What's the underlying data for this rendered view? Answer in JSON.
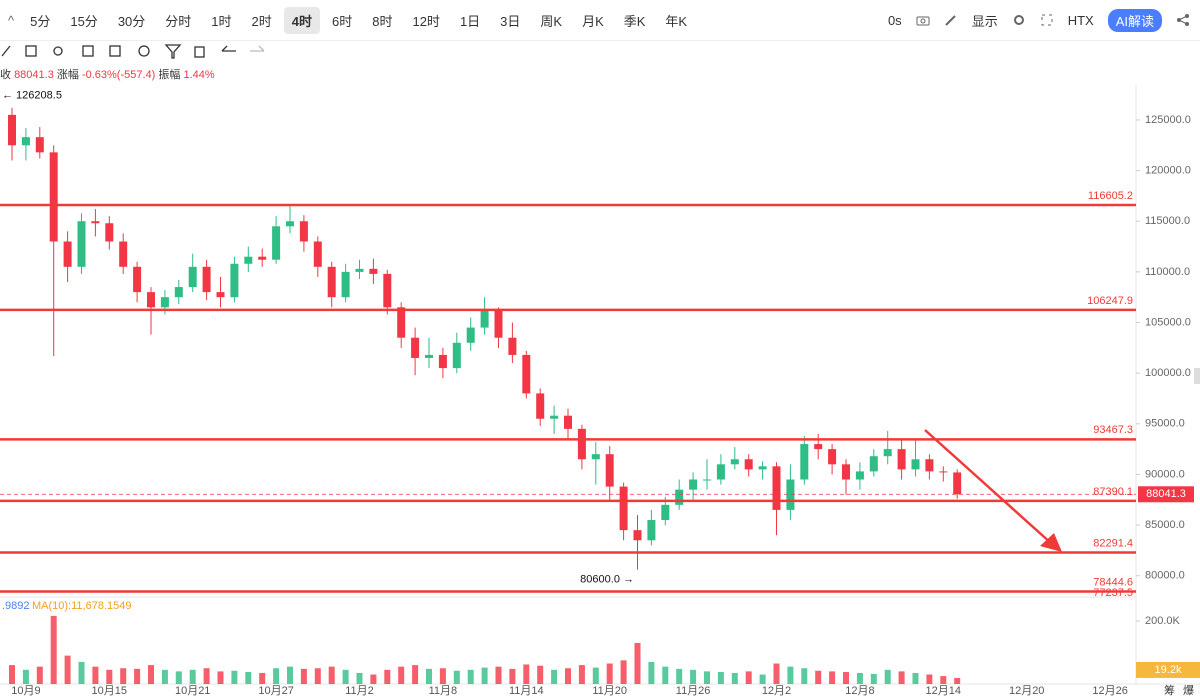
{
  "toolbar": {
    "intervals": [
      "5分",
      "15分",
      "30分",
      "分时",
      "1时",
      "2时",
      "4时",
      "6时",
      "8时",
      "12时",
      "1日",
      "3日",
      "周K",
      "月K",
      "季K",
      "年K"
    ],
    "selected": 6,
    "right": {
      "timer": "0s",
      "display": "显示",
      "exchange": "HTX",
      "ai": "AI解读"
    }
  },
  "info": {
    "close_label": "收",
    "close": "88041.3",
    "change_label": "涨幅",
    "change": "-0.63%(-557.4)",
    "amplitude_label": "振幅",
    "amplitude": "1.44%"
  },
  "volume_info": {
    "ma_prev": ".9892",
    "ma10": "MA(10):11,678.1549"
  },
  "side_tabs": [
    "筹",
    "爆"
  ],
  "chart_data": {
    "type": "candlestick",
    "categories": [
      null,
      "10月9",
      null,
      null,
      null,
      null,
      null,
      "10月15",
      null,
      null,
      null,
      null,
      null,
      "10月21",
      null,
      null,
      null,
      null,
      null,
      "10月27",
      null,
      null,
      null,
      null,
      null,
      "11月2",
      null,
      null,
      null,
      null,
      null,
      "11月8",
      null,
      null,
      null,
      null,
      null,
      "11月14",
      null,
      null,
      null,
      null,
      null,
      "11月20",
      null,
      null,
      null,
      null,
      null,
      "11月26",
      null,
      null,
      null,
      null,
      null,
      "12月2",
      null,
      null,
      null,
      null,
      null,
      "12月8",
      null,
      null,
      null,
      null,
      null,
      "12月14",
      null,
      null,
      null,
      null,
      null,
      "12月20",
      null,
      null,
      null,
      null,
      null,
      "12月26"
    ],
    "open": [
      125500,
      122500,
      123300,
      121800,
      113000,
      110500,
      115000,
      114800,
      113000,
      110500,
      108000,
      106500,
      107500,
      108500,
      110500,
      108000,
      107500,
      110800,
      111500,
      111200,
      114500,
      115000,
      113000,
      110500,
      107500,
      110000,
      110300,
      109800,
      106500,
      103500,
      101500,
      101800,
      100500,
      103000,
      104500,
      106200,
      103500,
      101800,
      98000,
      95500,
      95800,
      94500,
      91500,
      92000,
      88800,
      84500,
      83500,
      85500,
      87000,
      88500,
      89500,
      89500,
      91000,
      91500,
      90500,
      90800,
      86500,
      89500,
      93000,
      92500,
      91000,
      89500,
      90300,
      91800,
      92500,
      90500,
      91500,
      90300,
      90200,
      null,
      null,
      null,
      null,
      null,
      null,
      null,
      null,
      null,
      null,
      null
    ],
    "high": [
      126208.5,
      124200,
      124300,
      122500,
      114000,
      115800,
      116200,
      115500,
      113800,
      111000,
      108500,
      108200,
      109200,
      111800,
      111200,
      109500,
      111500,
      112500,
      112300,
      115500,
      116500,
      115600,
      113500,
      111000,
      110800,
      111200,
      111300,
      110200,
      107000,
      104500,
      103500,
      102500,
      104000,
      105500,
      107500,
      106500,
      105000,
      102200,
      98500,
      96800,
      96500,
      94900,
      93200,
      92800,
      89200,
      86000,
      86500,
      87800,
      89500,
      90200,
      91500,
      92000,
      92700,
      92000,
      91300,
      91200,
      91000,
      93800,
      94000,
      93000,
      91500,
      91200,
      92500,
      94300,
      93500,
      93500,
      92000,
      90800,
      90500,
      null,
      null,
      null,
      null,
      null,
      null,
      null,
      null,
      null,
      null,
      null
    ],
    "low": [
      121000,
      121000,
      121200,
      101700,
      109000,
      109800,
      113500,
      112200,
      109800,
      107000,
      103800,
      105800,
      106800,
      108000,
      107200,
      106500,
      107000,
      110000,
      110500,
      110800,
      113800,
      112000,
      109500,
      106500,
      107000,
      109300,
      108800,
      105800,
      102500,
      99800,
      100500,
      99500,
      100000,
      102200,
      103800,
      102500,
      101000,
      97500,
      94800,
      94000,
      93500,
      90500,
      89000,
      87500,
      83500,
      80600,
      83000,
      85000,
      86500,
      87500,
      88500,
      89000,
      90500,
      89800,
      89500,
      84000,
      85500,
      89000,
      91500,
      90000,
      88000,
      88500,
      89800,
      91000,
      89500,
      89800,
      89500,
      89300,
      87600,
      null,
      null,
      null,
      null,
      null,
      null,
      null,
      null,
      null,
      null,
      null
    ],
    "close": [
      122500,
      123300,
      121800,
      113000,
      110500,
      115000,
      114800,
      113000,
      110500,
      108000,
      106500,
      107500,
      108500,
      110500,
      108000,
      107500,
      110800,
      111500,
      111200,
      114500,
      115000,
      113000,
      110500,
      107500,
      110000,
      110300,
      109800,
      106500,
      103500,
      101500,
      101800,
      100500,
      103000,
      104500,
      106200,
      103500,
      101800,
      98000,
      95500,
      95800,
      94500,
      91500,
      92000,
      88800,
      84500,
      83500,
      85500,
      87000,
      88500,
      89500,
      89500,
      91000,
      91500,
      90500,
      90800,
      86500,
      89500,
      93000,
      92500,
      91000,
      89500,
      90300,
      91800,
      92500,
      90500,
      91500,
      90300,
      90200,
      88041.3,
      null,
      null,
      null,
      null,
      null,
      null,
      null,
      null,
      null,
      null,
      null
    ],
    "volume": [
      60000,
      45000,
      55000,
      216000,
      90000,
      70000,
      55000,
      45000,
      50000,
      48000,
      60000,
      45000,
      40000,
      45000,
      50000,
      40000,
      42000,
      38000,
      35000,
      50000,
      55000,
      48000,
      50000,
      55000,
      45000,
      35000,
      30000,
      45000,
      55000,
      60000,
      48000,
      50000,
      42000,
      45000,
      52000,
      55000,
      48000,
      62000,
      58000,
      45000,
      50000,
      60000,
      52000,
      65000,
      75000,
      130000,
      70000,
      55000,
      48000,
      45000,
      40000,
      38000,
      35000,
      40000,
      30000,
      65000,
      55000,
      50000,
      42000,
      40000,
      38000,
      35000,
      32000,
      45000,
      40000,
      35000,
      30000,
      25000,
      19200,
      null,
      null,
      null,
      null,
      null,
      null,
      null,
      null,
      null,
      null,
      null
    ],
    "up_color": "#2ebd85",
    "down_color": "#f23645",
    "ylim": [
      77900,
      128450
    ],
    "yticks": [
      {
        "value": 80000,
        "label": "80000.0"
      },
      {
        "value": 85000,
        "label": "85000.0"
      },
      {
        "value": 90000,
        "label": "90000.0"
      },
      {
        "value": 95000,
        "label": "95000.0"
      },
      {
        "value": 100000,
        "label": "100000.0"
      },
      {
        "value": 105000,
        "label": "105000.0"
      },
      {
        "value": 110000,
        "label": "110000.0"
      },
      {
        "value": 115000,
        "label": "115000.0"
      },
      {
        "value": 120000,
        "label": "120000.0"
      },
      {
        "value": 125000,
        "label": "125000.0"
      }
    ],
    "volume_ylim": [
      0,
      276000
    ],
    "volume_yticks": [
      {
        "value": 200000,
        "label": "200.0K"
      }
    ],
    "volume_last": {
      "value": 19200,
      "label": "19.2k"
    },
    "levels": [
      116605.2,
      106247.9,
      93467.3,
      87390.1,
      82291.4,
      78444.6,
      77237.5
    ],
    "level_color": "#f03a3a",
    "last_price": 88041.3,
    "annotations": [
      {
        "value": 126208.5,
        "label": "← 126208.5"
      },
      {
        "value": 80600,
        "label": "80600.0 →"
      }
    ]
  }
}
